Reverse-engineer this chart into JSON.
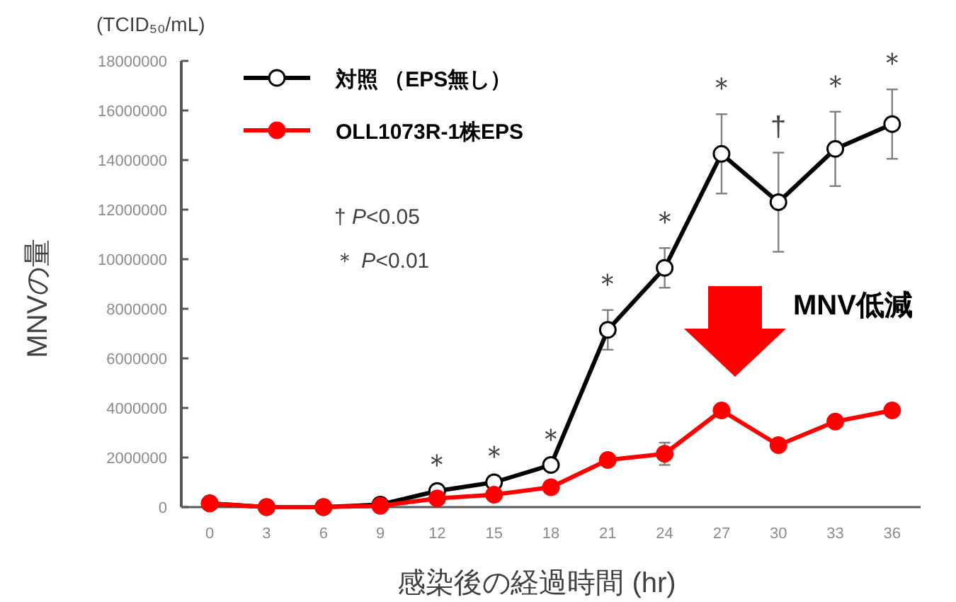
{
  "chart_data": {
    "type": "line",
    "xlabel": "感染後の経過時間 (hr)",
    "ylabel": "MNVの量",
    "x": [
      0,
      3,
      6,
      9,
      12,
      15,
      18,
      21,
      24,
      27,
      30,
      33,
      36
    ],
    "series": [
      {
        "name": "対照 （EPS無し）",
        "color": "#000000",
        "values": [
          150000,
          0,
          0,
          100000,
          650000,
          1000000,
          1700000,
          7150000,
          9650000,
          14250000,
          12300000,
          14450000,
          15450000
        ],
        "errors": [
          null,
          null,
          null,
          null,
          null,
          null,
          null,
          800000,
          800000,
          1600000,
          2000000,
          1500000,
          1400000
        ]
      },
      {
        "name": "OLL1073R-1株EPS",
        "color": "#ff0000",
        "values": [
          150000,
          0,
          0,
          50000,
          350000,
          500000,
          800000,
          1900000,
          2150000,
          3900000,
          2500000,
          3450000,
          3900000
        ],
        "errors": [
          null,
          null,
          null,
          null,
          null,
          null,
          null,
          null,
          450000,
          null,
          null,
          null,
          null
        ]
      }
    ],
    "xlim": [
      -1.5,
      37.5
    ],
    "xticks": [
      0,
      3,
      6,
      9,
      12,
      15,
      18,
      21,
      24,
      27,
      30,
      33,
      36
    ],
    "ylim": [
      0,
      18000000
    ],
    "yticks": [
      0,
      2000000,
      4000000,
      6000000,
      8000000,
      10000000,
      12000000,
      14000000,
      16000000,
      18000000
    ],
    "grid": false,
    "legend": "top left",
    "marker": "circle",
    "line_style": "solid",
    "annotations": [
      "(TCID₅₀/mL)",
      "† P<0.05",
      "＊ P<0.01",
      "MNV低減",
      {
        "text": "＊",
        "x": 12,
        "y": 650000
      },
      {
        "text": "＊",
        "x": 15,
        "y": 1000000
      },
      {
        "text": "＊",
        "x": 18,
        "y": 1700000
      },
      {
        "text": "＊",
        "x": 21,
        "y": 7150000
      },
      {
        "text": "＊",
        "x": 24,
        "y": 9650000
      },
      {
        "text": "＊",
        "x": 27,
        "y": 14250000
      },
      {
        "text": "†",
        "x": 30,
        "y": 12300000
      },
      {
        "text": "＊",
        "x": 33,
        "y": 14450000
      },
      {
        "text": "＊",
        "x": 36,
        "y": 15450000
      }
    ]
  }
}
